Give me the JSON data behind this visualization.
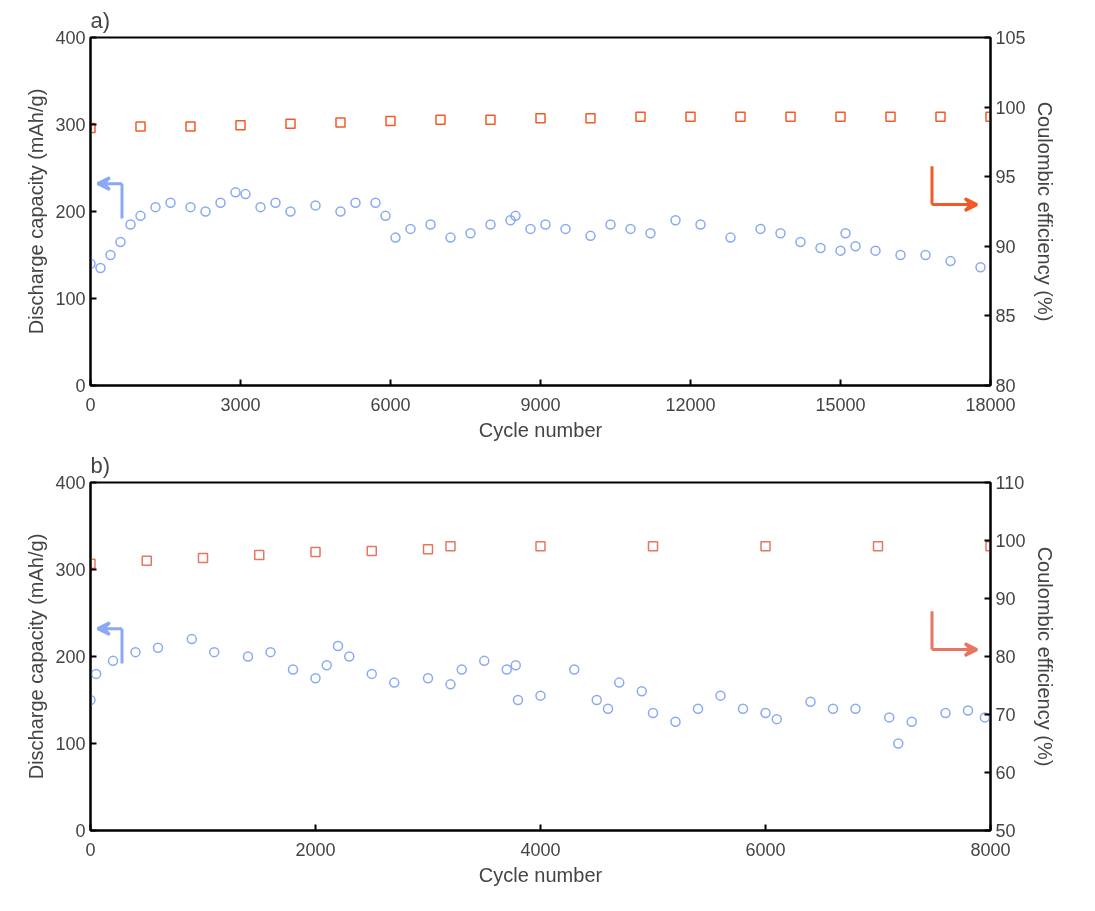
{
  "chart_data": [
    {
      "type": "scatter",
      "title": "a)",
      "xlabel": "Cycle number",
      "ylabel": "Discharge capacity (mAh/g)",
      "y2label": "Coulombic efficiency (%)",
      "xlim": [
        0,
        18000
      ],
      "xticks": [
        0,
        3000,
        6000,
        9000,
        12000,
        15000,
        18000
      ],
      "ylim": [
        0,
        400
      ],
      "yticks": [
        0,
        100,
        200,
        300,
        400
      ],
      "y2lim": [
        80,
        105
      ],
      "y2ticks": [
        80,
        85,
        90,
        95,
        100,
        105
      ],
      "grid": false,
      "series": [
        {
          "marker": "circle",
          "color": "#8aa9f5",
          "x": [
            0,
            200,
            400,
            600,
            800,
            1000,
            1300,
            1600,
            2000,
            2300,
            2600,
            2900,
            3100,
            3400,
            3700,
            4000,
            4500,
            5000,
            5300,
            5700,
            5900,
            6100,
            6400,
            6800,
            7200,
            7600,
            8000,
            8400,
            8500,
            8800,
            9100,
            9500,
            10000,
            10400,
            10800,
            11200,
            11700,
            12200,
            12800,
            13400,
            13800,
            14200,
            14600,
            15000,
            15100,
            15300,
            15700,
            16200,
            16700,
            17200,
            17800
          ],
          "values": [
            140,
            135,
            150,
            165,
            185,
            195,
            205,
            210,
            205,
            200,
            210,
            222,
            220,
            205,
            210,
            200,
            207,
            200,
            210,
            210,
            195,
            170,
            180,
            185,
            170,
            175,
            185,
            190,
            195,
            180,
            185,
            180,
            172,
            185,
            180,
            175,
            190,
            185,
            170,
            180,
            175,
            165,
            158,
            155,
            175,
            160,
            155,
            150,
            150,
            143,
            136
          ]
        },
        {
          "marker": "square",
          "axis": "y2",
          "color": "#f05a28",
          "x": [
            0,
            1000,
            2000,
            3000,
            4000,
            5000,
            6000,
            7000,
            8000,
            9000,
            10000,
            11000,
            12000,
            13000,
            14000,
            15000,
            16000,
            17000,
            18000
          ],
          "values": [
            98.5,
            98.6,
            98.6,
            98.7,
            98.8,
            98.9,
            99.0,
            99.1,
            99.1,
            99.2,
            99.2,
            99.3,
            99.3,
            99.3,
            99.3,
            99.3,
            99.3,
            99.3,
            99.3
          ]
        }
      ]
    },
    {
      "type": "scatter",
      "title": "b)",
      "xlabel": "Cycle number",
      "ylabel": "Discharge capacity (mAh/g)",
      "y2label": "Coulombic efficiency (%)",
      "xlim": [
        0,
        8000
      ],
      "xticks": [
        0,
        2000,
        4000,
        6000,
        8000
      ],
      "ylim": [
        0,
        400
      ],
      "yticks": [
        0,
        100,
        200,
        300,
        400
      ],
      "y2lim": [
        50,
        110
      ],
      "y2ticks": [
        50,
        60,
        70,
        80,
        90,
        100,
        110
      ],
      "grid": false,
      "series": [
        {
          "marker": "circle",
          "color": "#8aa9f5",
          "x": [
            0,
            50,
            200,
            400,
            600,
            900,
            1100,
            1400,
            1600,
            1800,
            2000,
            2100,
            2200,
            2300,
            2500,
            2700,
            3000,
            3200,
            3300,
            3500,
            3700,
            3780,
            3800,
            4000,
            4300,
            4500,
            4600,
            4700,
            4900,
            5000,
            5200,
            5400,
            5600,
            5800,
            6000,
            6100,
            6400,
            6600,
            6800,
            7100,
            7180,
            7300,
            7600,
            7800,
            7950
          ],
          "values": [
            150,
            180,
            195,
            205,
            210,
            220,
            205,
            200,
            205,
            185,
            175,
            190,
            212,
            200,
            180,
            170,
            175,
            168,
            185,
            195,
            185,
            190,
            150,
            155,
            185,
            150,
            140,
            170,
            160,
            135,
            125,
            140,
            155,
            140,
            135,
            128,
            148,
            140,
            140,
            130,
            100,
            125,
            135,
            138,
            130
          ]
        },
        {
          "marker": "square",
          "axis": "y2",
          "color": "#e87562",
          "x": [
            0,
            500,
            1000,
            1500,
            2000,
            2500,
            3000,
            3200,
            4000,
            5000,
            6000,
            7000,
            8000
          ],
          "values": [
            96,
            96.5,
            97,
            97.5,
            98,
            98.2,
            98.5,
            99,
            99,
            99,
            99,
            99,
            99
          ]
        }
      ]
    }
  ]
}
